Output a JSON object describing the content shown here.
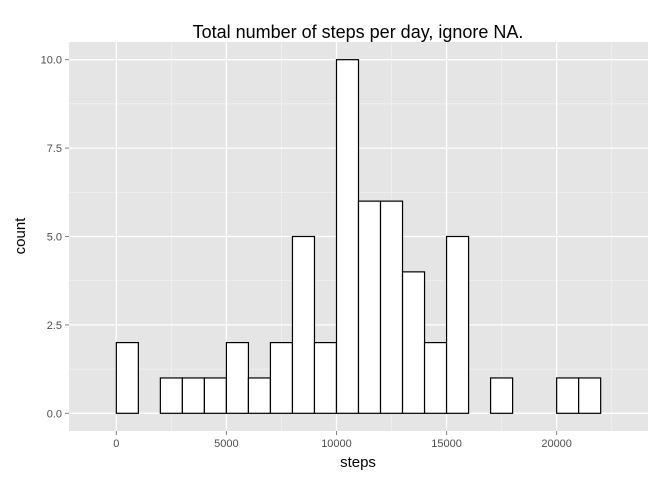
{
  "chart_data": {
    "type": "bar",
    "title": "Total number of steps per day, ignore NA.",
    "xlabel": "steps",
    "ylabel": "count",
    "xlim": [
      -2150,
      24150
    ],
    "ylim": [
      -0.5,
      10.5
    ],
    "binwidth": 1000,
    "bins": [
      {
        "start": -1000,
        "end": 0,
        "count": 0
      },
      {
        "start": 0,
        "end": 1000,
        "count": 2
      },
      {
        "start": 1000,
        "end": 2000,
        "count": 0
      },
      {
        "start": 2000,
        "end": 3000,
        "count": 1
      },
      {
        "start": 3000,
        "end": 4000,
        "count": 1
      },
      {
        "start": 4000,
        "end": 5000,
        "count": 1
      },
      {
        "start": 5000,
        "end": 6000,
        "count": 2
      },
      {
        "start": 6000,
        "end": 7000,
        "count": 1
      },
      {
        "start": 7000,
        "end": 8000,
        "count": 2
      },
      {
        "start": 8000,
        "end": 9000,
        "count": 5
      },
      {
        "start": 9000,
        "end": 10000,
        "count": 2
      },
      {
        "start": 10000,
        "end": 11000,
        "count": 10
      },
      {
        "start": 11000,
        "end": 12000,
        "count": 6
      },
      {
        "start": 12000,
        "end": 13000,
        "count": 6
      },
      {
        "start": 13000,
        "end": 14000,
        "count": 4
      },
      {
        "start": 14000,
        "end": 15000,
        "count": 2
      },
      {
        "start": 15000,
        "end": 16000,
        "count": 5
      },
      {
        "start": 16000,
        "end": 17000,
        "count": 0
      },
      {
        "start": 17000,
        "end": 18000,
        "count": 1
      },
      {
        "start": 18000,
        "end": 19000,
        "count": 0
      },
      {
        "start": 19000,
        "end": 20000,
        "count": 0
      },
      {
        "start": 20000,
        "end": 21000,
        "count": 1
      },
      {
        "start": 21000,
        "end": 22000,
        "count": 1
      },
      {
        "start": 22000,
        "end": 23000,
        "count": 0
      }
    ],
    "x_ticks": [
      0,
      5000,
      10000,
      15000,
      20000
    ],
    "x_tick_labels": [
      "0",
      "5000",
      "10000",
      "15000",
      "20000"
    ],
    "y_ticks": [
      0,
      2.5,
      5,
      7.5,
      10
    ],
    "y_tick_labels": [
      "0.0",
      "2.5",
      "5.0",
      "7.5",
      "10.0"
    ],
    "grid": true,
    "colors": {
      "panel_background": "#e5e5e5",
      "grid_major": "#ffffff",
      "grid_minor": "#f2f2f2",
      "bar_fill": "#ffffff",
      "bar_outline": "#000000",
      "tick_text": "#4d4d4d"
    }
  }
}
